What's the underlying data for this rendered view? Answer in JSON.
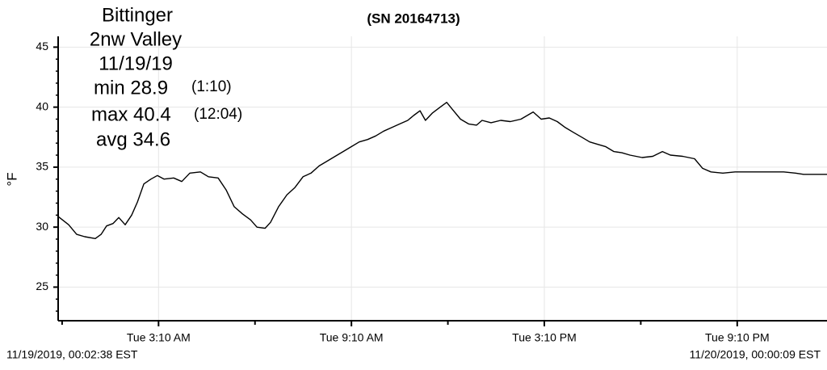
{
  "chart_data": {
    "type": "line",
    "title": "(SN 20164713)",
    "annotations": {
      "station": "Bittinger",
      "location": "2nw Valley",
      "date": "11/19/19",
      "min": "min 28.9",
      "min_time": "(1:10)",
      "max": "max 40.4",
      "max_time": "(12:04)",
      "avg": "avg 34.6"
    },
    "y_label": "°F",
    "start_label": "11/19/2019, 00:02:38 EST",
    "end_label": "11/20/2019, 00:00:09 EST",
    "color": "#000000",
    "grid": true,
    "x": [
      0.04,
      0.37,
      0.62,
      0.87,
      1.2,
      1.38,
      1.55,
      1.75,
      1.93,
      2.13,
      2.33,
      2.51,
      2.71,
      2.93,
      3.13,
      3.34,
      3.64,
      3.89,
      4.14,
      4.47,
      4.72,
      5.02,
      5.27,
      5.52,
      5.78,
      6.03,
      6.23,
      6.48,
      6.65,
      6.9,
      7.16,
      7.41,
      7.66,
      7.91,
      8.16,
      8.41,
      8.66,
      8.91,
      9.16,
      9.41,
      9.67,
      9.92,
      10.17,
      10.42,
      10.67,
      10.92,
      11.1,
      11.3,
      11.47,
      11.68,
      11.93,
      12.13,
      12.31,
      12.56,
      12.81,
      13.06,
      13.23,
      13.51,
      13.81,
      14.11,
      14.44,
      14.82,
      15.07,
      15.32,
      15.57,
      15.82,
      16.07,
      16.33,
      16.58,
      16.83,
      17.08,
      17.33,
      17.58,
      17.83,
      18.21,
      18.54,
      18.84,
      19.09,
      19.47,
      19.84,
      20.09,
      20.35,
      20.72,
      21.1,
      21.48,
      21.85,
      22.23,
      22.61,
      22.98,
      23.23,
      23.61,
      23.96
    ],
    "values": [
      30.9,
      30.2,
      29.4,
      29.2,
      29.05,
      29.4,
      30.1,
      30.3,
      30.8,
      30.2,
      31.0,
      32.1,
      33.6,
      34.0,
      34.3,
      34.0,
      34.1,
      33.8,
      34.5,
      34.6,
      34.2,
      34.1,
      33.1,
      31.7,
      31.1,
      30.6,
      30.0,
      29.9,
      30.4,
      31.7,
      32.7,
      33.3,
      34.2,
      34.5,
      35.1,
      35.5,
      35.9,
      36.3,
      36.7,
      37.1,
      37.3,
      37.6,
      38.0,
      38.3,
      38.6,
      38.9,
      39.3,
      39.7,
      38.9,
      39.5,
      40.0,
      40.4,
      39.8,
      39.0,
      38.6,
      38.5,
      38.9,
      38.7,
      38.9,
      38.8,
      39.0,
      39.6,
      39.0,
      39.1,
      38.8,
      38.3,
      37.9,
      37.5,
      37.1,
      36.9,
      36.7,
      36.3,
      36.2,
      36.0,
      35.8,
      35.9,
      36.3,
      36.0,
      35.9,
      35.7,
      34.9,
      34.6,
      34.5,
      34.6,
      34.6,
      34.6,
      34.6,
      34.6,
      34.5,
      34.4,
      34.4,
      34.4
    ],
    "xlim": [
      0.044,
      23.96
    ],
    "xticks": [
      {
        "value": 3.167,
        "label": "Tue 3:10 AM"
      },
      {
        "value": 9.167,
        "label": "Tue 9:10 AM"
      },
      {
        "value": 15.167,
        "label": "Tue 3:10 PM"
      },
      {
        "value": 21.167,
        "label": "Tue 9:10 PM"
      }
    ],
    "xminor": [
      0.167,
      6.167,
      12.167,
      18.167
    ],
    "ylim": [
      22.2,
      45.9
    ],
    "yticks": [
      25,
      30,
      35,
      40,
      45
    ],
    "yminor": [
      23,
      24,
      26,
      27,
      28,
      29,
      31,
      32,
      33,
      34,
      36,
      37,
      38,
      39,
      41,
      42,
      43,
      44
    ]
  }
}
